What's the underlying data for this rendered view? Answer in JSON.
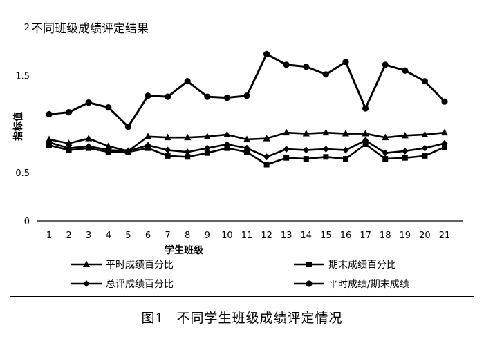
{
  "chart_data": {
    "type": "line",
    "title": "不同班级成绩评定结果",
    "xlabel": "学生班级",
    "ylabel": "指标值",
    "categories": [
      "1",
      "2",
      "3",
      "4",
      "5",
      "6",
      "7",
      "8",
      "9",
      "10",
      "11",
      "12",
      "13",
      "14",
      "15",
      "16",
      "17",
      "18",
      "19",
      "20",
      "21"
    ],
    "y_ticks": [
      "0",
      "0.5",
      "1.5",
      "2"
    ],
    "ylim": [
      0,
      2
    ],
    "grid": false,
    "legend_position": "bottom",
    "series": [
      {
        "name": "平时成绩百分比",
        "marker": "triangle",
        "values": [
          0.84,
          0.8,
          0.85,
          0.77,
          0.72,
          0.87,
          0.86,
          0.86,
          0.87,
          0.89,
          0.84,
          0.85,
          0.91,
          0.9,
          0.91,
          0.9,
          0.9,
          0.86,
          0.88,
          0.89,
          0.91
        ]
      },
      {
        "name": "期末成绩百分比",
        "marker": "square",
        "values": [
          0.78,
          0.73,
          0.75,
          0.71,
          0.71,
          0.75,
          0.67,
          0.66,
          0.7,
          0.75,
          0.71,
          0.58,
          0.65,
          0.64,
          0.66,
          0.64,
          0.79,
          0.64,
          0.65,
          0.67,
          0.76
        ]
      },
      {
        "name": "总评成绩百分比",
        "marker": "diamond",
        "values": [
          0.81,
          0.75,
          0.77,
          0.73,
          0.72,
          0.78,
          0.73,
          0.71,
          0.75,
          0.79,
          0.75,
          0.66,
          0.74,
          0.73,
          0.74,
          0.73,
          0.83,
          0.7,
          0.72,
          0.75,
          0.8
        ]
      },
      {
        "name": "平时成绩/期末成绩",
        "marker": "circle",
        "values": [
          1.1,
          1.12,
          1.22,
          1.17,
          0.97,
          1.29,
          1.28,
          1.44,
          1.28,
          1.27,
          1.29,
          1.72,
          1.61,
          1.59,
          1.51,
          1.64,
          1.16,
          1.61,
          1.55,
          1.44,
          1.23
        ]
      }
    ]
  },
  "caption": {
    "number": "图1",
    "text": "不同学生班级成绩评定情况"
  }
}
